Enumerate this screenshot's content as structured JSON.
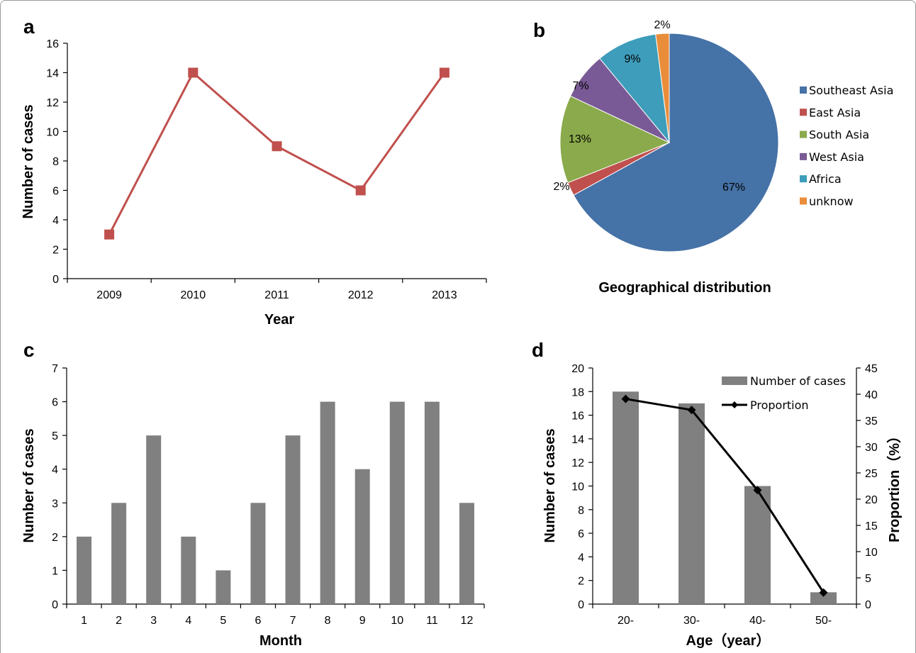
{
  "panels": {
    "a": "a",
    "b": "b",
    "c": "c",
    "d": "d"
  },
  "chart_data": [
    {
      "panel": "a",
      "type": "line",
      "x": [
        "2009",
        "2010",
        "2011",
        "2012",
        "2013"
      ],
      "values": [
        3,
        14,
        9,
        6,
        14
      ],
      "xlabel": "Year",
      "ylabel": "Number of cases",
      "ylim": [
        0,
        16
      ],
      "yticks": [
        "0",
        "2",
        "4",
        "6",
        "8",
        "10",
        "12",
        "14",
        "16"
      ],
      "color": "#c0504d",
      "grid": false
    },
    {
      "panel": "b",
      "type": "pie",
      "title": "Geographical distribution",
      "slices": [
        {
          "label": "Southeast Asia",
          "value": 67,
          "text": "67%",
          "color": "#4572a7"
        },
        {
          "label": "East Asia",
          "value": 2,
          "text": "2%",
          "color": "#c0504d"
        },
        {
          "label": "South Asia",
          "value": 13,
          "text": "13%",
          "color": "#8aaa4b"
        },
        {
          "label": "West Asia",
          "value": 7,
          "text": "7%",
          "color": "#7a5a96"
        },
        {
          "label": "Africa",
          "value": 9,
          "text": "9%",
          "color": "#3d9dba"
        },
        {
          "label": "unknow",
          "value": 2,
          "text": "2%",
          "color": "#e98d3b"
        }
      ],
      "legend_position": "right"
    },
    {
      "panel": "c",
      "type": "bar",
      "categories": [
        "1",
        "2",
        "3",
        "4",
        "5",
        "6",
        "7",
        "8",
        "9",
        "10",
        "11",
        "12"
      ],
      "values": [
        2,
        3,
        5,
        2,
        1,
        3,
        5,
        6,
        4,
        6,
        6,
        3
      ],
      "xlabel": "Month",
      "ylabel": "Number of cases",
      "ylim": [
        0,
        7
      ],
      "yticks": [
        "0",
        "1",
        "2",
        "3",
        "4",
        "5",
        "6",
        "7"
      ],
      "color": "#808080",
      "grid": false
    },
    {
      "panel": "d",
      "type": "bar",
      "categories": [
        "20-",
        "30-",
        "40-",
        "50-"
      ],
      "series": [
        {
          "name": "Number of cases",
          "kind": "bar",
          "axis": "left",
          "values": [
            18,
            17,
            10,
            1
          ],
          "color": "#808080"
        },
        {
          "name": "Proportion",
          "kind": "line",
          "axis": "right",
          "values": [
            39.1,
            37.0,
            21.7,
            2.2
          ],
          "color": "#000000"
        }
      ],
      "xlabel": "Age（year）",
      "ylabel": "Number of cases",
      "ylabel_right": "Proportion（%）",
      "ylim": [
        0,
        20
      ],
      "ylim_right": [
        0,
        45
      ],
      "yticks": [
        "0",
        "2",
        "4",
        "6",
        "8",
        "10",
        "12",
        "14",
        "16",
        "18",
        "20"
      ],
      "yticks_right": [
        "0",
        "5",
        "10",
        "15",
        "20",
        "25",
        "30",
        "35",
        "40",
        "45"
      ],
      "legend_position": "top-right",
      "grid": false
    }
  ]
}
